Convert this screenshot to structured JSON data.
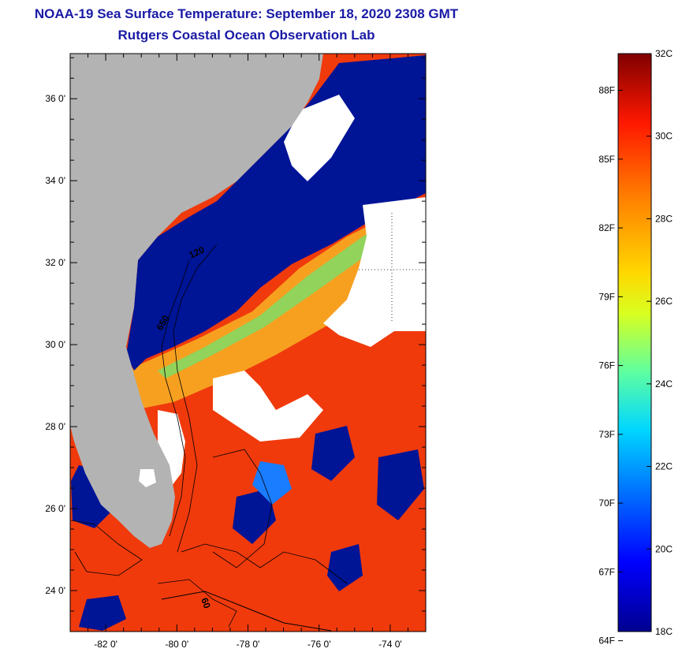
{
  "header": {
    "title": "NOAA-19 Sea Surface Temperature:  September 18, 2020 2308 GMT",
    "subtitle": "Rutgers Coastal Ocean Observation Lab"
  },
  "map": {
    "lat_ticks": [
      {
        "value": 36,
        "label": "36 0'"
      },
      {
        "value": 34,
        "label": "34 0'"
      },
      {
        "value": 32,
        "label": "32 0'"
      },
      {
        "value": 30,
        "label": "30 0'"
      },
      {
        "value": 28,
        "label": "28 0'"
      },
      {
        "value": 26,
        "label": "26 0'"
      },
      {
        "value": 24,
        "label": "24 0'"
      }
    ],
    "lon_ticks": [
      {
        "value": -82,
        "label": "-82 0'"
      },
      {
        "value": -80,
        "label": "-80 0'"
      },
      {
        "value": -78,
        "label": "-78 0'"
      },
      {
        "value": -76,
        "label": "-76 0'"
      },
      {
        "value": -74,
        "label": "-74 0'"
      }
    ],
    "lat_range": [
      23,
      37.1
    ],
    "lon_range": [
      -83,
      -73
    ],
    "contour_labels": [
      "120",
      "650",
      "60"
    ],
    "colors": {
      "land": "#b3b3b3",
      "cold_water": "#001496",
      "cloud": "#ffffff",
      "warm_water": "#f0300c"
    }
  },
  "colorbar": {
    "celsius_labels": [
      "32C",
      "30C",
      "28C",
      "26C",
      "24C",
      "22C",
      "20C",
      "18C"
    ],
    "fahrenheit_labels": [
      "88F",
      "85F",
      "82F",
      "79F",
      "76F",
      "73F",
      "70F",
      "67F",
      "64F"
    ],
    "range_c": [
      18,
      32
    ]
  }
}
